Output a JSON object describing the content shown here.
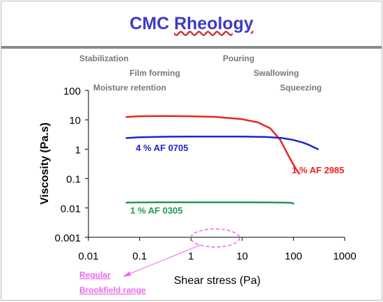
{
  "slide": {
    "title_word1": "CMC",
    "title_word2": "Rheology",
    "title_color": "#3b3bc8",
    "rule_color": "#8a8a8a"
  },
  "annotations": {
    "process_labels": [
      "Stabilization",
      "Film forming",
      "Moisture retention",
      "Pouring",
      "Swallowing",
      "Squeezing"
    ],
    "brookfield_labels": [
      "Regular",
      "Brookfield range"
    ],
    "brookfield_color": "#ee66ee"
  },
  "chart_data": {
    "type": "line",
    "title": "CMC Rheology",
    "xlabel": "Shear stress (Pa)",
    "ylabel": "Viscosity (Pa.s)",
    "xscale": "log",
    "yscale": "log",
    "xlim": [
      0.01,
      1000
    ],
    "ylim": [
      0.001,
      100
    ],
    "xticks": [
      0.01,
      0.1,
      1,
      10,
      100,
      1000
    ],
    "xtick_labels": [
      "0.01",
      "0.1",
      "1",
      "10",
      "100",
      "1000"
    ],
    "yticks": [
      0.001,
      0.01,
      0.1,
      1,
      10,
      100
    ],
    "ytick_labels": [
      "0.001",
      "0.01",
      "0.1",
      "1",
      "10",
      "100"
    ],
    "grid": false,
    "legend": "none",
    "series": [
      {
        "name": "1 % AF 2985",
        "color": "#ee2222",
        "x": [
          0.055,
          0.1,
          0.3,
          1,
          3,
          10,
          20,
          35,
          55,
          80,
          110,
          130
        ],
        "y": [
          12.5,
          13.3,
          13.5,
          13.2,
          12.6,
          10.5,
          8.2,
          5.2,
          2.1,
          0.6,
          0.22,
          0.15
        ]
      },
      {
        "name": "4 % AF 0705",
        "color": "#2222cc",
        "x": [
          0.055,
          0.1,
          0.3,
          1,
          3,
          10,
          30,
          60,
          100,
          150,
          200,
          300
        ],
        "y": [
          2.4,
          2.55,
          2.65,
          2.7,
          2.7,
          2.7,
          2.6,
          2.4,
          2.05,
          1.7,
          1.4,
          1.0
        ]
      },
      {
        "name": "1 % AF 0305",
        "color": "#229955",
        "x": [
          0.055,
          0.1,
          0.3,
          1,
          3,
          10,
          30,
          60,
          90,
          100
        ],
        "y": [
          0.0152,
          0.0154,
          0.0155,
          0.0155,
          0.0155,
          0.0155,
          0.0154,
          0.0152,
          0.015,
          0.014
        ]
      }
    ]
  }
}
